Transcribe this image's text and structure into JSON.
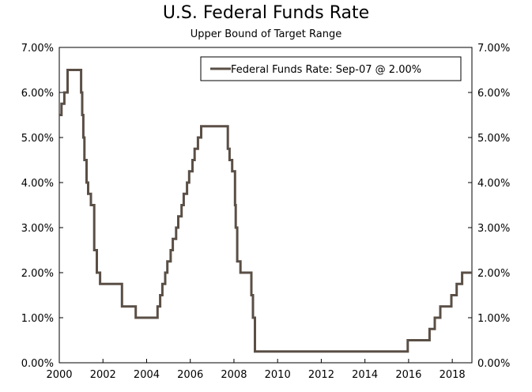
{
  "chart_data": {
    "type": "line",
    "title": "U.S. Federal Funds Rate",
    "subtitle": "Upper Bound of Target Range",
    "xlabel": "",
    "ylabel": "",
    "xlim": [
      2000,
      2018.9
    ],
    "ylim": [
      0,
      7
    ],
    "x_ticks": [
      2000,
      2002,
      2004,
      2006,
      2008,
      2010,
      2012,
      2014,
      2016,
      2018
    ],
    "x_tick_labels": [
      "2000",
      "2002",
      "2004",
      "2006",
      "2008",
      "2010",
      "2012",
      "2014",
      "2016",
      "2018"
    ],
    "y_ticks": [
      0,
      1,
      2,
      3,
      4,
      5,
      6,
      7
    ],
    "y_tick_labels": [
      "0.00%",
      "1.00%",
      "2.00%",
      "3.00%",
      "4.00%",
      "5.00%",
      "6.00%",
      "7.00%"
    ],
    "legend_position": "top-right",
    "series": [
      {
        "name": "Federal Funds Rate: Sep-07 @ 2.00%",
        "color": "#5a4f46",
        "step": true,
        "x": [
          2000.0,
          2000.1,
          2000.23,
          2000.38,
          2001.0,
          2001.05,
          2001.1,
          2001.15,
          2001.25,
          2001.32,
          2001.38,
          2001.45,
          2001.6,
          2001.67,
          2001.72,
          2001.8,
          2001.87,
          2001.95,
          2002.87,
          2003.5,
          2004.5,
          2004.62,
          2004.72,
          2004.85,
          2004.95,
          2005.1,
          2005.2,
          2005.35,
          2005.45,
          2005.6,
          2005.7,
          2005.85,
          2005.95,
          2006.1,
          2006.2,
          2006.35,
          2006.5,
          2007.72,
          2007.8,
          2007.92,
          2008.05,
          2008.08,
          2008.15,
          2008.3,
          2008.8,
          2008.87,
          2008.96,
          2015.96,
          2016.96,
          2017.2,
          2017.45,
          2017.96,
          2018.2,
          2018.45,
          2018.7
        ],
        "values": [
          5.5,
          5.75,
          6.0,
          6.5,
          6.0,
          5.5,
          5.0,
          4.5,
          4.0,
          3.75,
          3.75,
          3.5,
          2.5,
          2.5,
          2.0,
          2.0,
          1.75,
          1.75,
          1.25,
          1.0,
          1.25,
          1.5,
          1.75,
          2.0,
          2.25,
          2.5,
          2.75,
          3.0,
          3.25,
          3.5,
          3.75,
          4.0,
          4.25,
          4.5,
          4.75,
          5.0,
          5.25,
          4.75,
          4.5,
          4.25,
          3.5,
          3.0,
          2.25,
          2.0,
          1.5,
          1.0,
          0.25,
          0.5,
          0.75,
          1.0,
          1.25,
          1.5,
          1.75,
          2.0,
          2.0
        ],
        "end_x": 2018.9
      }
    ]
  }
}
